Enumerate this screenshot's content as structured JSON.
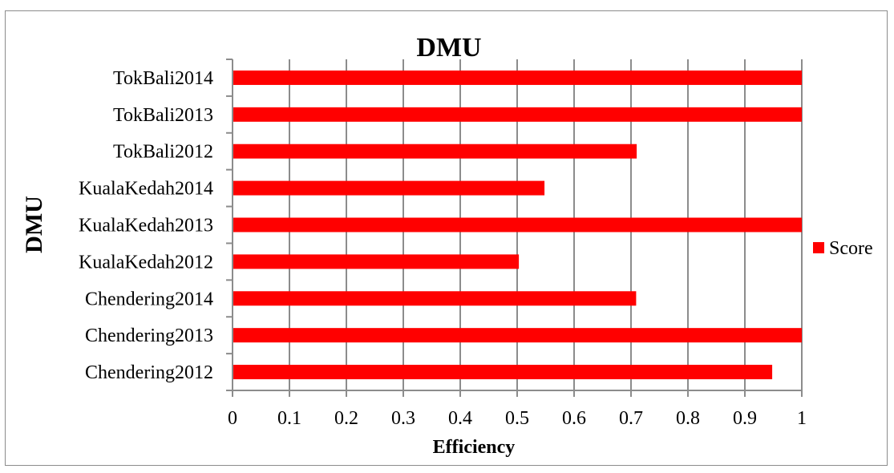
{
  "chart_data": {
    "type": "bar",
    "orientation": "horizontal",
    "title": "DMU",
    "xlabel": "Efficiency",
    "ylabel": "DMU",
    "categories": [
      "TokBali2014",
      "TokBali2013",
      "TokBali2012",
      "KualaKedah2014",
      "KualaKedah2013",
      "KualaKedah2012",
      "Chendering2014",
      "Chendering2013",
      "Chendering2012"
    ],
    "series": [
      {
        "name": "Score",
        "color": "#ff0000",
        "values": [
          1,
          1,
          0.71,
          0.548,
          1,
          0.503,
          0.709,
          1,
          0.948
        ]
      }
    ],
    "xlim": [
      0,
      1
    ],
    "xticks": [
      "0",
      "0.1",
      "0.2",
      "0.3",
      "0.4",
      "0.5",
      "0.6",
      "0.7",
      "0.8",
      "0.9",
      "1"
    ],
    "grid": "vertical",
    "gridColor": "#8c8c8c",
    "legend": "right"
  }
}
